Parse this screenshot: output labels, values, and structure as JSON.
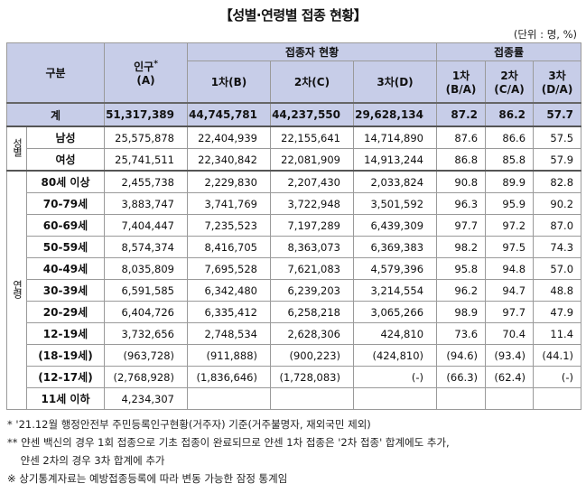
{
  "title": "【성별·연령별 접종 현황】",
  "unit": "(단위 : 명, %)",
  "headers": {
    "category": "구분",
    "population": "인구",
    "population_mark": "*",
    "population_code": "(A)",
    "vaccinated_group": "접종자 현황",
    "dose1": "1차(B)",
    "dose2": "2차(C)",
    "dose3": "3차(D)",
    "rate_group": "접종률",
    "rate1_a": "1차",
    "rate1_b": "(B/A)",
    "rate2_a": "2차",
    "rate2_b": "(C/A)",
    "rate3_a": "3차",
    "rate3_b": "(D/A)"
  },
  "groups": {
    "gender": "성별",
    "age": "연령"
  },
  "total": {
    "label": "계",
    "pop": "51,317,389",
    "d1": "44,745,781",
    "d2": "44,237,550",
    "d3": "29,628,134",
    "r1": "87.2",
    "r2": "86.2",
    "r3": "57.7"
  },
  "gender_rows": [
    {
      "label": "남성",
      "pop": "25,575,878",
      "d1": "22,404,939",
      "d2": "22,155,641",
      "d3": "14,714,890",
      "r1": "87.6",
      "r2": "86.6",
      "r3": "57.5"
    },
    {
      "label": "여성",
      "pop": "25,741,511",
      "d1": "22,340,842",
      "d2": "22,081,909",
      "d3": "14,913,244",
      "r1": "86.8",
      "r2": "85.8",
      "r3": "57.9"
    }
  ],
  "age_rows": [
    {
      "label": "80세 이상",
      "pop": "2,455,738",
      "d1": "2,229,830",
      "d2": "2,207,430",
      "d3": "2,033,824",
      "r1": "90.8",
      "r2": "89.9",
      "r3": "82.8"
    },
    {
      "label": "70-79세",
      "pop": "3,883,747",
      "d1": "3,741,769",
      "d2": "3,722,948",
      "d3": "3,501,592",
      "r1": "96.3",
      "r2": "95.9",
      "r3": "90.2"
    },
    {
      "label": "60-69세",
      "pop": "7,404,447",
      "d1": "7,235,523",
      "d2": "7,197,289",
      "d3": "6,439,309",
      "r1": "97.7",
      "r2": "97.2",
      "r3": "87.0"
    },
    {
      "label": "50-59세",
      "pop": "8,574,374",
      "d1": "8,416,705",
      "d2": "8,363,073",
      "d3": "6,369,383",
      "r1": "98.2",
      "r2": "97.5",
      "r3": "74.3"
    },
    {
      "label": "40-49세",
      "pop": "8,035,809",
      "d1": "7,695,528",
      "d2": "7,621,083",
      "d3": "4,579,396",
      "r1": "95.8",
      "r2": "94.8",
      "r3": "57.0"
    },
    {
      "label": "30-39세",
      "pop": "6,591,585",
      "d1": "6,342,480",
      "d2": "6,239,203",
      "d3": "3,214,554",
      "r1": "96.2",
      "r2": "94.7",
      "r3": "48.8"
    },
    {
      "label": "20-29세",
      "pop": "6,404,726",
      "d1": "6,335,412",
      "d2": "6,258,218",
      "d3": "3,065,266",
      "r1": "98.9",
      "r2": "97.7",
      "r3": "47.9"
    },
    {
      "label": "12-19세",
      "pop": "3,732,656",
      "d1": "2,748,534",
      "d2": "2,628,306",
      "d3": "424,810",
      "r1": "73.6",
      "r2": "70.4",
      "r3": "11.4"
    },
    {
      "label": "(18-19세)",
      "pop": "(963,728)",
      "d1": "(911,888)",
      "d2": "(900,223)",
      "d3": "(424,810)",
      "r1": "(94.6)",
      "r2": "(93.4)",
      "r3": "(44.1)"
    },
    {
      "label": "(12-17세)",
      "pop": "(2,768,928)",
      "d1": "(1,836,646)",
      "d2": "(1,728,083)",
      "d3": "(-)",
      "r1": "(66.3)",
      "r2": "(62.4)",
      "r3": "(-)"
    },
    {
      "label": "11세 이하",
      "pop": "4,234,307",
      "d1": "",
      "d2": "",
      "d3": "",
      "r1": "",
      "r2": "",
      "r3": ""
    }
  ],
  "notes": [
    "* '21.12월 행정안전부 주민등록인구현황(거주자) 기준(거주불명자, 재외국민 제외)",
    "** 얀센 백신의 경우 1회 접종으로 기초 접종이 완료되므로 얀센 1차 접종은 '2차 접종' 합계에도 추가,",
    "    얀센 2차의 경우 3차 합계에 추가",
    "※ 상기통계자료는 예방접종등록에 따라 변동 가능한 잠정 통계임"
  ]
}
